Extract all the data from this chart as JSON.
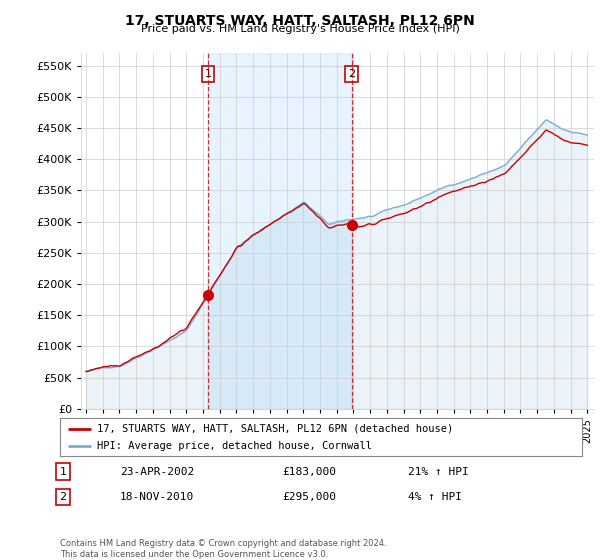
{
  "title": "17, STUARTS WAY, HATT, SALTASH, PL12 6PN",
  "subtitle": "Price paid vs. HM Land Registry's House Price Index (HPI)",
  "legend_line1": "17, STUARTS WAY, HATT, SALTASH, PL12 6PN (detached house)",
  "legend_line2": "HPI: Average price, detached house, Cornwall",
  "transaction1_date": "23-APR-2002",
  "transaction1_price": "£183,000",
  "transaction1_hpi": "21% ↑ HPI",
  "transaction2_date": "18-NOV-2010",
  "transaction2_price": "£295,000",
  "transaction2_hpi": "4% ↑ HPI",
  "footer": "Contains HM Land Registry data © Crown copyright and database right 2024.\nThis data is licensed under the Open Government Licence v3.0.",
  "line_color_property": "#cc0000",
  "line_color_hpi": "#7ab0d4",
  "fill_color_between": "#ddeeff",
  "vline_color": "#cc0000",
  "ylim": [
    0,
    570000
  ],
  "yticks": [
    0,
    50000,
    100000,
    150000,
    200000,
    250000,
    300000,
    350000,
    400000,
    450000,
    500000,
    550000
  ],
  "transaction1_year": 2002.31,
  "transaction2_year": 2010.89,
  "plot_bg_color": "#ffffff"
}
